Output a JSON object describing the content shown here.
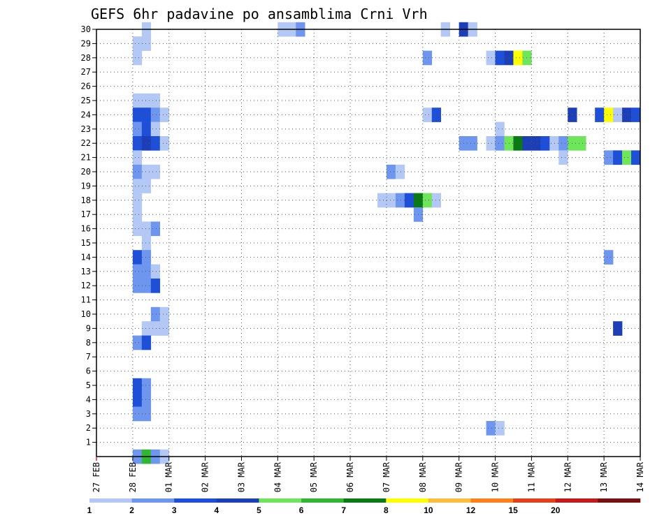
{
  "chart_data": {
    "type": "heatmap",
    "title": "GEFS 6hr padavine po ansamblima Crni Vrh",
    "x_ticks": [
      "27 FEB",
      "28 FEB",
      "01 MAR",
      "02 MAR",
      "03 MAR",
      "04 MAR",
      "05 MAR",
      "06 MAR",
      "07 MAR",
      "08 MAR",
      "09 MAR",
      "10 MAR",
      "11 MAR",
      "12 MAR",
      "13 MAR",
      "14 MAR"
    ],
    "y_ticks": [
      1,
      2,
      3,
      4,
      5,
      6,
      7,
      8,
      9,
      10,
      11,
      12,
      13,
      14,
      15,
      16,
      17,
      18,
      19,
      20,
      21,
      22,
      23,
      24,
      25,
      26,
      27,
      28,
      29,
      30
    ],
    "x_range": [
      "27 FEB 00Z",
      "14 MAR 00Z"
    ],
    "y_range": [
      0,
      30
    ],
    "cell_hours": 6,
    "grid": "dotted",
    "colorbar": {
      "levels": [
        1,
        2,
        3,
        4,
        5,
        6,
        7,
        8,
        10,
        12,
        15,
        20
      ],
      "colors": [
        "#b4c8f5",
        "#6e96ee",
        "#1e4fd8",
        "#1c3fb8",
        "#6ee55a",
        "#2fb82f",
        "#0a7a14",
        "#ffff00",
        "#ffbb3a",
        "#ff7f1a",
        "#e0401a",
        "#c21a1a",
        "#7a0f0f"
      ]
    },
    "cells": [
      {
        "m": 30,
        "day": "28 FEB",
        "h": 6,
        "v": 1.5
      },
      {
        "m": 29,
        "day": "28 FEB",
        "h": 0,
        "v": 1.5
      },
      {
        "m": 29,
        "day": "28 FEB",
        "h": 6,
        "v": 1.5
      },
      {
        "m": 28,
        "day": "28 FEB",
        "h": 0,
        "v": 1.5
      },
      {
        "m": 25,
        "day": "28 FEB",
        "h": 0,
        "v": 1.5
      },
      {
        "m": 25,
        "day": "28 FEB",
        "h": 6,
        "v": 1.5
      },
      {
        "m": 25,
        "day": "28 FEB",
        "h": 12,
        "v": 1.5
      },
      {
        "m": 24,
        "day": "28 FEB",
        "h": 0,
        "v": 3.5
      },
      {
        "m": 24,
        "day": "28 FEB",
        "h": 6,
        "v": 3.5
      },
      {
        "m": 24,
        "day": "28 FEB",
        "h": 12,
        "v": 2.5
      },
      {
        "m": 24,
        "day": "28 FEB",
        "h": 18,
        "v": 1.5
      },
      {
        "m": 23,
        "day": "28 FEB",
        "h": 0,
        "v": 2.5
      },
      {
        "m": 23,
        "day": "28 FEB",
        "h": 6,
        "v": 3.5
      },
      {
        "m": 23,
        "day": "28 FEB",
        "h": 12,
        "v": 1.5
      },
      {
        "m": 22,
        "day": "28 FEB",
        "h": 0,
        "v": 3.5
      },
      {
        "m": 22,
        "day": "28 FEB",
        "h": 6,
        "v": 4.5
      },
      {
        "m": 22,
        "day": "28 FEB",
        "h": 12,
        "v": 3.5
      },
      {
        "m": 22,
        "day": "28 FEB",
        "h": 18,
        "v": 1.5
      },
      {
        "m": 21,
        "day": "28 FEB",
        "h": 0,
        "v": 1.5
      },
      {
        "m": 20,
        "day": "28 FEB",
        "h": 0,
        "v": 2.5
      },
      {
        "m": 20,
        "day": "28 FEB",
        "h": 6,
        "v": 1.5
      },
      {
        "m": 20,
        "day": "28 FEB",
        "h": 12,
        "v": 1.5
      },
      {
        "m": 19,
        "day": "28 FEB",
        "h": 0,
        "v": 1.5
      },
      {
        "m": 19,
        "day": "28 FEB",
        "h": 6,
        "v": 1.5
      },
      {
        "m": 18,
        "day": "28 FEB",
        "h": 0,
        "v": 1.5
      },
      {
        "m": 17,
        "day": "28 FEB",
        "h": 0,
        "v": 1.5
      },
      {
        "m": 16,
        "day": "28 FEB",
        "h": 0,
        "v": 1.5
      },
      {
        "m": 16,
        "day": "28 FEB",
        "h": 6,
        "v": 1.5
      },
      {
        "m": 16,
        "day": "28 FEB",
        "h": 12,
        "v": 2.5
      },
      {
        "m": 15,
        "day": "28 FEB",
        "h": 6,
        "v": 1.5
      },
      {
        "m": 14,
        "day": "28 FEB",
        "h": 0,
        "v": 3.5
      },
      {
        "m": 14,
        "day": "28 FEB",
        "h": 6,
        "v": 2.5
      },
      {
        "m": 13,
        "day": "28 FEB",
        "h": 0,
        "v": 2.5
      },
      {
        "m": 13,
        "day": "28 FEB",
        "h": 6,
        "v": 2.5
      },
      {
        "m": 13,
        "day": "28 FEB",
        "h": 12,
        "v": 1.5
      },
      {
        "m": 12,
        "day": "28 FEB",
        "h": 0,
        "v": 2.5
      },
      {
        "m": 12,
        "day": "28 FEB",
        "h": 6,
        "v": 2.5
      },
      {
        "m": 12,
        "day": "28 FEB",
        "h": 12,
        "v": 3.5
      },
      {
        "m": 10,
        "day": "28 FEB",
        "h": 12,
        "v": 2.5
      },
      {
        "m": 10,
        "day": "28 FEB",
        "h": 18,
        "v": 1.5
      },
      {
        "m": 9,
        "day": "28 FEB",
        "h": 6,
        "v": 1.5
      },
      {
        "m": 9,
        "day": "28 FEB",
        "h": 12,
        "v": 1.5
      },
      {
        "m": 9,
        "day": "28 FEB",
        "h": 18,
        "v": 1.5
      },
      {
        "m": 8,
        "day": "28 FEB",
        "h": 0,
        "v": 2.5
      },
      {
        "m": 8,
        "day": "28 FEB",
        "h": 6,
        "v": 3.5
      },
      {
        "m": 5,
        "day": "28 FEB",
        "h": 0,
        "v": 3.5
      },
      {
        "m": 5,
        "day": "28 FEB",
        "h": 6,
        "v": 2.5
      },
      {
        "m": 4,
        "day": "28 FEB",
        "h": 0,
        "v": 3.5
      },
      {
        "m": 4,
        "day": "28 FEB",
        "h": 6,
        "v": 2.5
      },
      {
        "m": 3,
        "day": "28 FEB",
        "h": 0,
        "v": 2.5
      },
      {
        "m": 3,
        "day": "28 FEB",
        "h": 6,
        "v": 2.5
      },
      {
        "m": 0,
        "day": "28 FEB",
        "h": 0,
        "v": 2.5
      },
      {
        "m": 0,
        "day": "28 FEB",
        "h": 6,
        "v": 6.5
      },
      {
        "m": 0,
        "day": "28 FEB",
        "h": 12,
        "v": 2.5
      },
      {
        "m": 0,
        "day": "28 FEB",
        "h": 18,
        "v": 1.5
      },
      {
        "m": 30,
        "day": "04 MAR",
        "h": 0,
        "v": 1.5
      },
      {
        "m": 30,
        "day": "04 MAR",
        "h": 6,
        "v": 1.5
      },
      {
        "m": 30,
        "day": "04 MAR",
        "h": 12,
        "v": 2.5
      },
      {
        "m": 20,
        "day": "07 MAR",
        "h": 0,
        "v": 2.5
      },
      {
        "m": 20,
        "day": "07 MAR",
        "h": 6,
        "v": 1.5
      },
      {
        "m": 18,
        "day": "06 MAR",
        "h": 18,
        "v": 1.5
      },
      {
        "m": 18,
        "day": "07 MAR",
        "h": 0,
        "v": 1.5
      },
      {
        "m": 18,
        "day": "07 MAR",
        "h": 6,
        "v": 2.5
      },
      {
        "m": 18,
        "day": "07 MAR",
        "h": 12,
        "v": 3.5
      },
      {
        "m": 18,
        "day": "07 MAR",
        "h": 18,
        "v": 7.5
      },
      {
        "m": 18,
        "day": "08 MAR",
        "h": 0,
        "v": 5.5
      },
      {
        "m": 18,
        "day": "08 MAR",
        "h": 6,
        "v": 1.5
      },
      {
        "m": 17,
        "day": "07 MAR",
        "h": 18,
        "v": 2.5
      },
      {
        "m": 28,
        "day": "08 MAR",
        "h": 0,
        "v": 2.5
      },
      {
        "m": 30,
        "day": "08 MAR",
        "h": 12,
        "v": 1.5
      },
      {
        "m": 24,
        "day": "08 MAR",
        "h": 0,
        "v": 1.5
      },
      {
        "m": 24,
        "day": "08 MAR",
        "h": 6,
        "v": 3.5
      },
      {
        "m": 30,
        "day": "09 MAR",
        "h": 0,
        "v": 4.5
      },
      {
        "m": 30,
        "day": "09 MAR",
        "h": 6,
        "v": 1.5
      },
      {
        "m": 22,
        "day": "09 MAR",
        "h": 0,
        "v": 2.5
      },
      {
        "m": 22,
        "day": "09 MAR",
        "h": 6,
        "v": 2.5
      },
      {
        "m": 28,
        "day": "09 MAR",
        "h": 18,
        "v": 1.5
      },
      {
        "m": 28,
        "day": "10 MAR",
        "h": 0,
        "v": 3.5
      },
      {
        "m": 28,
        "day": "10 MAR",
        "h": 6,
        "v": 4.5
      },
      {
        "m": 28,
        "day": "10 MAR",
        "h": 12,
        "v": 9
      },
      {
        "m": 28,
        "day": "10 MAR",
        "h": 18,
        "v": 5.5
      },
      {
        "m": 23,
        "day": "10 MAR",
        "h": 0,
        "v": 1.5
      },
      {
        "m": 22,
        "day": "09 MAR",
        "h": 18,
        "v": 1.5
      },
      {
        "m": 22,
        "day": "10 MAR",
        "h": 0,
        "v": 2.5
      },
      {
        "m": 22,
        "day": "10 MAR",
        "h": 6,
        "v": 5.5
      },
      {
        "m": 22,
        "day": "10 MAR",
        "h": 12,
        "v": 7.5
      },
      {
        "m": 22,
        "day": "10 MAR",
        "h": 18,
        "v": 4.5
      },
      {
        "m": 22,
        "day": "11 MAR",
        "h": 0,
        "v": 4.5
      },
      {
        "m": 22,
        "day": "11 MAR",
        "h": 6,
        "v": 3.5
      },
      {
        "m": 22,
        "day": "11 MAR",
        "h": 12,
        "v": 1.5
      },
      {
        "m": 22,
        "day": "11 MAR",
        "h": 18,
        "v": 2.5
      },
      {
        "m": 22,
        "day": "12 MAR",
        "h": 0,
        "v": 5.5
      },
      {
        "m": 22,
        "day": "12 MAR",
        "h": 6,
        "v": 5.5
      },
      {
        "m": 21,
        "day": "11 MAR",
        "h": 18,
        "v": 1.5
      },
      {
        "m": 24,
        "day": "12 MAR",
        "h": 0,
        "v": 4.5
      },
      {
        "m": 24,
        "day": "12 MAR",
        "h": 18,
        "v": 3.5
      },
      {
        "m": 24,
        "day": "13 MAR",
        "h": 0,
        "v": 9
      },
      {
        "m": 24,
        "day": "13 MAR",
        "h": 6,
        "v": 1.5
      },
      {
        "m": 24,
        "day": "13 MAR",
        "h": 12,
        "v": 4.5
      },
      {
        "m": 24,
        "day": "13 MAR",
        "h": 18,
        "v": 3.5
      },
      {
        "m": 21,
        "day": "13 MAR",
        "h": 0,
        "v": 2.5
      },
      {
        "m": 21,
        "day": "13 MAR",
        "h": 6,
        "v": 3.5
      },
      {
        "m": 21,
        "day": "13 MAR",
        "h": 12,
        "v": 5.5
      },
      {
        "m": 21,
        "day": "13 MAR",
        "h": 18,
        "v": 3.5
      },
      {
        "m": 14,
        "day": "13 MAR",
        "h": 0,
        "v": 2.5
      },
      {
        "m": 9,
        "day": "13 MAR",
        "h": 6,
        "v": 4.5
      },
      {
        "m": 2,
        "day": "09 MAR",
        "h": 18,
        "v": 2.5
      },
      {
        "m": 2,
        "day": "10 MAR",
        "h": 0,
        "v": 1.5
      }
    ]
  }
}
